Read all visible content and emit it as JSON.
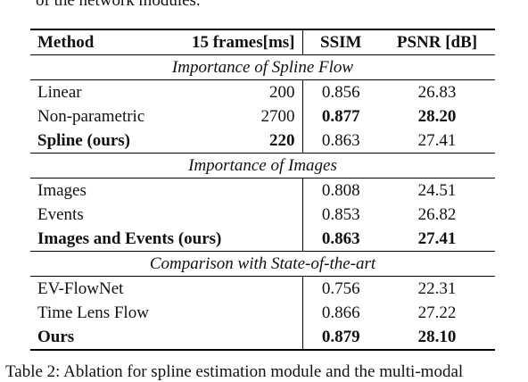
{
  "top_fragment": "of the network modules.",
  "bottom_fragment": "Table 2:  Ablation for spline estimation module and the multi-modal",
  "table": {
    "headers": {
      "method": "Method",
      "time": "15 frames[ms]",
      "ssim": "SSIM",
      "psnr": "PSNR [dB]"
    },
    "sections": [
      {
        "title": "Importance of Spline Flow",
        "rows": [
          {
            "method": "Linear",
            "time": "200",
            "ssim": "0.856",
            "psnr": "26.83"
          },
          {
            "method": "Non-parametric",
            "time": "2700",
            "ssim": "0.877",
            "psnr": "28.20"
          },
          {
            "method": "Spline (ours)",
            "time": "220",
            "ssim": "0.863",
            "psnr": "27.41"
          }
        ]
      },
      {
        "title": "Importance of Images",
        "rows": [
          {
            "method": "Images",
            "time": "",
            "ssim": "0.808",
            "psnr": "24.51"
          },
          {
            "method": "Events",
            "time": "",
            "ssim": "0.853",
            "psnr": "26.82"
          },
          {
            "method": "Images and Events (ours)",
            "time": "",
            "ssim": "0.863",
            "psnr": "27.41"
          }
        ]
      },
      {
        "title": "Comparison with State-of-the-art",
        "rows": [
          {
            "method": "EV-FlowNet",
            "time": "",
            "ssim": "0.756",
            "psnr": "22.31"
          },
          {
            "method": "Time Lens Flow",
            "time": "",
            "ssim": "0.866",
            "psnr": "27.22"
          },
          {
            "method": "Ours",
            "time": "",
            "ssim": "0.879",
            "psnr": "28.10"
          }
        ]
      }
    ]
  }
}
